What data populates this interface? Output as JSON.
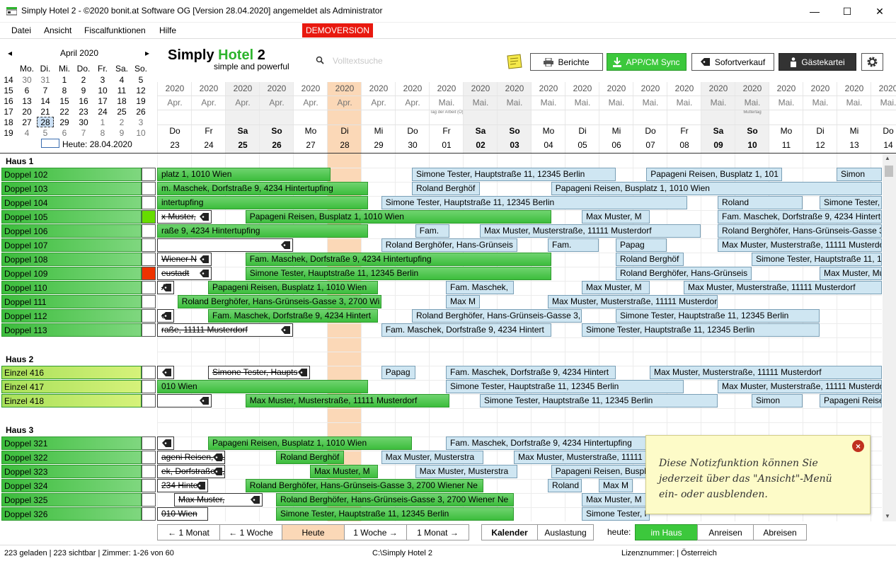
{
  "window": {
    "title": "Simply Hotel 2 - ©2020 bonit.at Software OG [Version 28.04.2020] angemeldet als Administrator",
    "minimize": "—",
    "maximize": "☐",
    "close": "✕"
  },
  "menu": {
    "items": [
      "Datei",
      "Ansicht",
      "Fiscalfunktionen",
      "Hilfe"
    ],
    "demo_label": "DEMOVERSION"
  },
  "calendar": {
    "month_label": "April 2020",
    "prev": "◂",
    "next": "▸",
    "weekdays": [
      "Mo.",
      "Di.",
      "Mi.",
      "Do.",
      "Fr.",
      "Sa.",
      "So."
    ],
    "weeks": [
      {
        "kw": "14",
        "days": [
          "30",
          "31",
          "1",
          "2",
          "3",
          "4",
          "5"
        ]
      },
      {
        "kw": "15",
        "days": [
          "6",
          "7",
          "8",
          "9",
          "10",
          "11",
          "12"
        ]
      },
      {
        "kw": "16",
        "days": [
          "13",
          "14",
          "15",
          "16",
          "17",
          "18",
          "19"
        ]
      },
      {
        "kw": "17",
        "days": [
          "20",
          "21",
          "22",
          "23",
          "24",
          "25",
          "26"
        ]
      },
      {
        "kw": "18",
        "days": [
          "27",
          "28",
          "29",
          "30",
          "1",
          "2",
          "3"
        ]
      },
      {
        "kw": "19",
        "days": [
          "4",
          "5",
          "6",
          "7",
          "8",
          "9",
          "10"
        ]
      }
    ],
    "today_label": "Heute: 28.04.2020"
  },
  "logo": {
    "simply": "Simply",
    "hotel": "Hotel",
    "num": "2",
    "tagline": "simple and powerful"
  },
  "search": {
    "placeholder": "Volltextsuche"
  },
  "toolbar": {
    "berichte": "Berichte",
    "sync": "APP/CM Sync",
    "sofort": "Sofortverkauf",
    "gaeste": "Gästekartei"
  },
  "timeline": {
    "days": [
      {
        "yr": "2020",
        "mo": "Apr.",
        "wd": "Do",
        "dn": "23",
        "hol": ""
      },
      {
        "yr": "2020",
        "mo": "Apr.",
        "wd": "Fr",
        "dn": "24",
        "hol": ""
      },
      {
        "yr": "2020",
        "mo": "Apr.",
        "wd": "Sa",
        "dn": "25",
        "hol": ""
      },
      {
        "yr": "2020",
        "mo": "Apr.",
        "wd": "So",
        "dn": "26",
        "hol": ""
      },
      {
        "yr": "2020",
        "mo": "Apr.",
        "wd": "Mo",
        "dn": "27",
        "hol": ""
      },
      {
        "yr": "2020",
        "mo": "Apr.",
        "wd": "Di",
        "dn": "28",
        "hol": ""
      },
      {
        "yr": "2020",
        "mo": "Apr.",
        "wd": "Mi",
        "dn": "29",
        "hol": ""
      },
      {
        "yr": "2020",
        "mo": "Apr.",
        "wd": "Do",
        "dn": "30",
        "hol": ""
      },
      {
        "yr": "2020",
        "mo": "Mai.",
        "wd": "Fr",
        "dn": "01",
        "hol": "Tag der Arbeit (Ö)"
      },
      {
        "yr": "2020",
        "mo": "Mai.",
        "wd": "Sa",
        "dn": "02",
        "hol": ""
      },
      {
        "yr": "2020",
        "mo": "Mai.",
        "wd": "So",
        "dn": "03",
        "hol": ""
      },
      {
        "yr": "2020",
        "mo": "Mai.",
        "wd": "Mo",
        "dn": "04",
        "hol": ""
      },
      {
        "yr": "2020",
        "mo": "Mai.",
        "wd": "Di",
        "dn": "05",
        "hol": ""
      },
      {
        "yr": "2020",
        "mo": "Mai.",
        "wd": "Mi",
        "dn": "06",
        "hol": ""
      },
      {
        "yr": "2020",
        "mo": "Mai.",
        "wd": "Do",
        "dn": "07",
        "hol": ""
      },
      {
        "yr": "2020",
        "mo": "Mai.",
        "wd": "Fr",
        "dn": "08",
        "hol": ""
      },
      {
        "yr": "2020",
        "mo": "Mai.",
        "wd": "Sa",
        "dn": "09",
        "hol": ""
      },
      {
        "yr": "2020",
        "mo": "Mai.",
        "wd": "So",
        "dn": "10",
        "hol": "Muttertag"
      },
      {
        "yr": "2020",
        "mo": "Mai.",
        "wd": "Mo",
        "dn": "11",
        "hol": ""
      },
      {
        "yr": "2020",
        "mo": "Mai.",
        "wd": "Di",
        "dn": "12",
        "hol": ""
      },
      {
        "yr": "2020",
        "mo": "Mai.",
        "wd": "Mi",
        "dn": "13",
        "hol": ""
      },
      {
        "yr": "2020",
        "mo": "Mai.",
        "wd": "Do",
        "dn": "14",
        "hol": ""
      }
    ]
  },
  "houses": [
    {
      "name": "Haus 1",
      "rooms": [
        {
          "name": "Doppel 102",
          "type": "dbl",
          "state": ""
        },
        {
          "name": "Doppel 103",
          "type": "dbl",
          "state": ""
        },
        {
          "name": "Doppel 104",
          "type": "dbl",
          "state": ""
        },
        {
          "name": "Doppel 105",
          "type": "dbl",
          "state": "g"
        },
        {
          "name": "Doppel 106",
          "type": "dbl",
          "state": ""
        },
        {
          "name": "Doppel 107",
          "type": "dbl",
          "state": ""
        },
        {
          "name": "Doppel 108",
          "type": "dbl",
          "state": ""
        },
        {
          "name": "Doppel 109",
          "type": "dbl",
          "state": "r"
        },
        {
          "name": "Doppel 110",
          "type": "dbl",
          "state": ""
        },
        {
          "name": "Doppel 111",
          "type": "dbl",
          "state": ""
        },
        {
          "name": "Doppel 112",
          "type": "dbl",
          "state": ""
        },
        {
          "name": "Doppel 113",
          "type": "dbl",
          "state": ""
        }
      ]
    },
    {
      "name": "Haus 2",
      "rooms": [
        {
          "name": "Einzel 416",
          "type": "ein",
          "state": ""
        },
        {
          "name": "Einzel 417",
          "type": "ein",
          "state": ""
        },
        {
          "name": "Einzel 418",
          "type": "ein",
          "state": ""
        }
      ]
    },
    {
      "name": "Haus 3",
      "rooms": [
        {
          "name": "Doppel 321",
          "type": "dbl",
          "state": ""
        },
        {
          "name": "Doppel 322",
          "type": "dbl",
          "state": ""
        },
        {
          "name": "Doppel 323",
          "type": "dbl",
          "state": ""
        },
        {
          "name": "Doppel 324",
          "type": "dbl",
          "state": ""
        },
        {
          "name": "Doppel 325",
          "type": "dbl",
          "state": ""
        },
        {
          "name": "Doppel 326",
          "type": "dbl",
          "state": ""
        }
      ]
    }
  ],
  "bookings": [
    {
      "row": 1,
      "start": -1,
      "len": 6.1,
      "style": "green",
      "text": "platz 1, 1010 Wien",
      "tag": false
    },
    {
      "row": 1,
      "start": 7.5,
      "len": 6,
      "style": "blue",
      "text": "Simone Tester, Hauptstraße 11, 12345 Berlin",
      "tag": false
    },
    {
      "row": 1,
      "start": 14.4,
      "len": 4,
      "style": "blue",
      "text": "Papageni Reisen, Busplatz 1, 101",
      "tag": false
    },
    {
      "row": 1,
      "start": 20,
      "len": 2,
      "style": "blue",
      "text": "Simon",
      "tag": false
    },
    {
      "row": 2,
      "start": -1,
      "len": 7.2,
      "style": "green",
      "text": "m. Maschek, Dorfstraße 9, 4234 Hintertupfing",
      "tag": false
    },
    {
      "row": 2,
      "start": 7.5,
      "len": 2,
      "style": "blue",
      "text": "Roland Berghöf",
      "tag": false
    },
    {
      "row": 2,
      "start": 11.6,
      "len": 11,
      "style": "blue",
      "text": "Papageni Reisen, Busplatz 1, 1010 Wien",
      "tag": false
    },
    {
      "row": 3,
      "start": -1,
      "len": 7.2,
      "style": "green",
      "text": "intertupfing",
      "tag": false
    },
    {
      "row": 3,
      "start": 6.6,
      "len": 9,
      "style": "blue",
      "text": "Simone Tester, Hauptstraße 11, 12345 Berlin",
      "tag": false
    },
    {
      "row": 3,
      "start": 16.5,
      "len": 2.5,
      "style": "blue",
      "text": "Roland",
      "tag": false
    },
    {
      "row": 3,
      "start": 19.5,
      "len": 3,
      "style": "blue",
      "text": "Simone Tester,",
      "tag": false
    },
    {
      "row": 4,
      "start": -1,
      "len": 2.6,
      "style": "white",
      "text": "x Muster,",
      "tag": true
    },
    {
      "row": 4,
      "start": 2.6,
      "len": 9,
      "style": "green",
      "text": "Papageni Reisen, Busplatz 1, 1010 Wien",
      "tag": false
    },
    {
      "row": 4,
      "start": 12.5,
      "len": 2,
      "style": "blue",
      "text": "Max Muster, M",
      "tag": false
    },
    {
      "row": 4,
      "start": 16.5,
      "len": 6,
      "style": "blue",
      "text": "Fam. Maschek, Dorfstraße 9, 4234 Hintertupfing",
      "tag": false
    },
    {
      "row": 5,
      "start": -1,
      "len": 7.2,
      "style": "green",
      "text": "raße 9, 4234 Hintertupfing",
      "tag": false
    },
    {
      "row": 5,
      "start": 7.6,
      "len": 1,
      "style": "blue",
      "text": "Fam.",
      "tag": false
    },
    {
      "row": 5,
      "start": 9.5,
      "len": 6.5,
      "style": "blue",
      "text": "Max Muster, Musterstraße, 11111 Musterdorf",
      "tag": false
    },
    {
      "row": 5,
      "start": 16.5,
      "len": 6,
      "style": "blue",
      "text": "Roland Berghöfer, Hans-Grünseis-Gasse 3,",
      "tag": false
    },
    {
      "row": 6,
      "start": -1,
      "len": 5,
      "style": "white",
      "text": "",
      "tag": true
    },
    {
      "row": 6,
      "start": 6.6,
      "len": 4,
      "style": "blue",
      "text": "Roland Berghöfer, Hans-Grünseis",
      "tag": false
    },
    {
      "row": 6,
      "start": 11.5,
      "len": 1.5,
      "style": "blue",
      "text": "Fam.",
      "tag": false
    },
    {
      "row": 6,
      "start": 13.5,
      "len": 1.5,
      "style": "blue",
      "text": "Papag",
      "tag": false
    },
    {
      "row": 6,
      "start": 16.5,
      "len": 6,
      "style": "blue",
      "text": "Max Muster, Musterstraße, 11111 Musterdorf",
      "tag": false
    },
    {
      "row": 7,
      "start": -1,
      "len": 2.6,
      "style": "white",
      "text": "Wiener N",
      "tag": true
    },
    {
      "row": 7,
      "start": 2.6,
      "len": 9,
      "style": "green",
      "text": "Fam. Maschek, Dorfstraße 9, 4234 Hintertupfing",
      "tag": false
    },
    {
      "row": 7,
      "start": 13.5,
      "len": 2,
      "style": "blue",
      "text": "Roland Berghöf",
      "tag": false
    },
    {
      "row": 7,
      "start": 17.5,
      "len": 5,
      "style": "blue",
      "text": "Simone Tester, Hauptstraße 11, 12345",
      "tag": false
    },
    {
      "row": 8,
      "start": -1,
      "len": 2.6,
      "style": "white",
      "text": "eustadt",
      "tag": true
    },
    {
      "row": 8,
      "start": 2.6,
      "len": 9,
      "style": "green",
      "text": "Simone Tester, Hauptstraße 11, 12345 Berlin",
      "tag": false
    },
    {
      "row": 8,
      "start": 13.5,
      "len": 4,
      "style": "blue",
      "text": "Roland Berghöfer, Hans-Grünseis",
      "tag": false
    },
    {
      "row": 8,
      "start": 19.5,
      "len": 3,
      "style": "blue",
      "text": "Max Muster, Mu",
      "tag": false
    },
    {
      "row": 9,
      "start": -1,
      "len": 1.5,
      "style": "white",
      "text": "A",
      "tag": true
    },
    {
      "row": 9,
      "start": 1.5,
      "len": 5,
      "style": "green",
      "text": "Papageni Reisen, Busplatz 1, 1010 Wien",
      "tag": false
    },
    {
      "row": 9,
      "start": 8.5,
      "len": 2,
      "style": "blue",
      "text": "Fam. Maschek,",
      "tag": false
    },
    {
      "row": 9,
      "start": 12.5,
      "len": 2,
      "style": "blue",
      "text": "Max Muster, M",
      "tag": false
    },
    {
      "row": 9,
      "start": 15.5,
      "len": 7,
      "style": "blue",
      "text": "Max Muster, Musterstraße, 11111 Musterdorf",
      "tag": false
    },
    {
      "row": 10,
      "start": 0.6,
      "len": 6,
      "style": "green",
      "text": "Roland Berghöfer, Hans-Grünseis-Gasse 3, 2700 Wi",
      "tag": false
    },
    {
      "row": 10,
      "start": 8.5,
      "len": 1,
      "style": "blue",
      "text": "Max M",
      "tag": false
    },
    {
      "row": 10,
      "start": 11.5,
      "len": 5,
      "style": "blue",
      "text": "Max Muster, Musterstraße, 11111 Musterdorf",
      "tag": false
    },
    {
      "row": 11,
      "start": -1,
      "len": 1.5,
      "style": "white",
      "text": "e",
      "tag": true
    },
    {
      "row": 11,
      "start": 1.5,
      "len": 5,
      "style": "green",
      "text": "Fam. Maschek, Dorfstraße 9, 4234 Hintert",
      "tag": false
    },
    {
      "row": 11,
      "start": 7.5,
      "len": 5,
      "style": "blue",
      "text": "Roland Berghöfer, Hans-Grünseis-Gasse 3,",
      "tag": false
    },
    {
      "row": 11,
      "start": 13.5,
      "len": 6,
      "style": "blue",
      "text": "Simone Tester, Hauptstraße 11, 12345 Berlin",
      "tag": false
    },
    {
      "row": 12,
      "start": -1,
      "len": 5,
      "style": "white",
      "text": "raße, 11111 Musterdorf",
      "tag": true
    },
    {
      "row": 12,
      "start": 6.6,
      "len": 5,
      "style": "blue",
      "text": "Fam. Maschek, Dorfstraße 9, 4234 Hintert",
      "tag": false
    },
    {
      "row": 12,
      "start": 12.5,
      "len": 7,
      "style": "blue",
      "text": "Simone Tester, Hauptstraße 11, 12345 Berlin",
      "tag": false
    },
    {
      "row": 15,
      "start": -1,
      "len": 1.5,
      "style": "white",
      "text": "",
      "tag": true
    },
    {
      "row": 15,
      "start": 1.5,
      "len": 3,
      "style": "white",
      "text": "Simone Tester, Haupts",
      "tag": true
    },
    {
      "row": 15,
      "start": 6.6,
      "len": 1,
      "style": "blue",
      "text": "Papag",
      "tag": false
    },
    {
      "row": 15,
      "start": 8.5,
      "len": 5,
      "style": "blue",
      "text": "Fam. Maschek, Dorfstraße 9, 4234 Hintert",
      "tag": false
    },
    {
      "row": 15,
      "start": 14.5,
      "len": 8,
      "style": "blue",
      "text": "Max Muster, Musterstraße, 11111 Musterdorf",
      "tag": false
    },
    {
      "row": 16,
      "start": -1,
      "len": 7.2,
      "style": "green",
      "text": "010 Wien",
      "tag": false
    },
    {
      "row": 16,
      "start": 8.5,
      "len": 7,
      "style": "blue",
      "text": "Simone Tester, Hauptstraße 11, 12345 Berlin",
      "tag": false
    },
    {
      "row": 16,
      "start": 16.5,
      "len": 6,
      "style": "blue",
      "text": "Max Muster, Musterstraße, 11111 Musterdorf",
      "tag": false
    },
    {
      "row": 17,
      "start": -1,
      "len": 2.6,
      "style": "white",
      "text": "",
      "tag": true
    },
    {
      "row": 17,
      "start": 2.6,
      "len": 6,
      "style": "green",
      "text": "Max Muster, Musterstraße, 11111 Musterdorf",
      "tag": false
    },
    {
      "row": 17,
      "start": 9.5,
      "len": 7,
      "style": "blue",
      "text": "Simone Tester, Hauptstraße 11, 12345 Berlin",
      "tag": false
    },
    {
      "row": 17,
      "start": 17.5,
      "len": 1.5,
      "style": "blue",
      "text": "Simon",
      "tag": false
    },
    {
      "row": 17,
      "start": 19.5,
      "len": 3,
      "style": "blue",
      "text": "Papageni Reisen",
      "tag": false
    },
    {
      "row": 20,
      "start": -1,
      "len": 1.5,
      "style": "white",
      "text": "",
      "tag": true
    },
    {
      "row": 20,
      "start": 1.5,
      "len": 6,
      "style": "green",
      "text": "Papageni Reisen, Busplatz 1, 1010 Wien",
      "tag": false
    },
    {
      "row": 20,
      "start": 8.5,
      "len": 7,
      "style": "blue",
      "text": "Fam. Maschek, Dorfstraße 9, 4234 Hintertupfing",
      "tag": false
    },
    {
      "row": 21,
      "start": -1,
      "len": 3,
      "style": "white",
      "text": "ageni Reisen, Busp",
      "tag": true
    },
    {
      "row": 21,
      "start": 3.5,
      "len": 2,
      "style": "green",
      "text": "Roland Berghöf",
      "tag": false
    },
    {
      "row": 21,
      "start": 6.6,
      "len": 3,
      "style": "blue",
      "text": "Max Muster, Musterstra",
      "tag": false
    },
    {
      "row": 21,
      "start": 10.5,
      "len": 5,
      "style": "blue",
      "text": "Max Muster, Musterstraße, 11111 Musterdorf",
      "tag": false
    },
    {
      "row": 22,
      "start": -1,
      "len": 3,
      "style": "white",
      "text": "ek, Dorfstraße 9, 42",
      "tag": true
    },
    {
      "row": 22,
      "start": 4.5,
      "len": 2,
      "style": "green",
      "text": "Max Muster, M",
      "tag": false
    },
    {
      "row": 22,
      "start": 7.6,
      "len": 3,
      "style": "blue",
      "text": "Max Muster, Musterstra",
      "tag": false
    },
    {
      "row": 22,
      "start": 11.6,
      "len": 3,
      "style": "blue",
      "text": "Papageni Reisen, Busplat",
      "tag": false
    },
    {
      "row": 23,
      "start": -1,
      "len": 2.5,
      "style": "white",
      "text": "234 Hinte",
      "tag": true
    },
    {
      "row": 23,
      "start": 2.6,
      "len": 7,
      "style": "green",
      "text": "Roland Berghöfer, Hans-Grünseis-Gasse 3, 2700 Wiener Ne",
      "tag": false
    },
    {
      "row": 23,
      "start": 11.5,
      "len": 1,
      "style": "blue",
      "text": "Roland",
      "tag": false
    },
    {
      "row": 23,
      "start": 13,
      "len": 1,
      "style": "blue",
      "text": "Max M",
      "tag": false
    },
    {
      "row": 24,
      "start": 0.5,
      "len": 2.6,
      "style": "white",
      "text": "Max Muster,",
      "tag": true
    },
    {
      "row": 24,
      "start": 3.5,
      "len": 7,
      "style": "green",
      "text": "Roland Berghöfer, Hans-Grünseis-Gasse 3, 2700 Wiener Ne",
      "tag": false
    },
    {
      "row": 24,
      "start": 12.5,
      "len": 2,
      "style": "blue",
      "text": "Max Muster, M",
      "tag": false
    },
    {
      "row": 25,
      "start": -1,
      "len": 2.5,
      "style": "white",
      "text": "010 Wien",
      "tag": false
    },
    {
      "row": 25,
      "start": 3.5,
      "len": 7,
      "style": "green",
      "text": "Simone Tester, Hauptstraße 11, 12345 Berlin",
      "tag": false
    },
    {
      "row": 25,
      "start": 12.5,
      "len": 2,
      "style": "blue",
      "text": "Simone Tester, H",
      "tag": false
    }
  ],
  "note": {
    "line1": "Diese Notizfunktion können Sie",
    "line2": "jederzeit über das \"Ansicht\"-Menü",
    "line3": "ein- oder ausblenden.",
    "close": "×"
  },
  "nav": {
    "back_month": "← 1 Monat",
    "back_week": "← 1 Woche",
    "today": "Heute",
    "fwd_week": "1 Woche →",
    "fwd_month": "1 Monat →",
    "kalender": "Kalender",
    "auslastung": "Auslastung",
    "heute_label": "heute:",
    "im_haus": "im Haus",
    "anreisen": "Anreisen",
    "abreisen": "Abreisen"
  },
  "status": {
    "left": "223 geladen | 223 sichtbar | Zimmer: 1-26 von 60",
    "path": "C:\\Simply Hotel 2",
    "license": "Lizenznummer: | Österreich"
  },
  "colors": {
    "accent_green": "#3cc83c",
    "today": "#fbd8b7",
    "demo_red": "#e8190f"
  }
}
